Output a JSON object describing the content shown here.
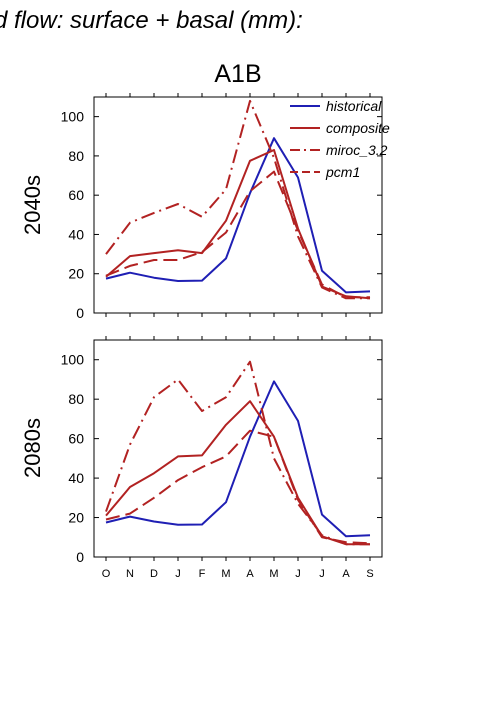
{
  "figure": {
    "title": "d flow: surface + basal (mm):",
    "scenario": "A1B"
  },
  "colors": {
    "historical": "#1f1fb4",
    "projections": "#b22222",
    "axis": "#000000"
  },
  "legend": {
    "placement": "top-right",
    "entries": [
      {
        "label": "historical",
        "style": "solid",
        "color": "#1f1fb4"
      },
      {
        "label": "composite",
        "style": "solid",
        "color": "#b22222"
      },
      {
        "label": "miroc_3.2",
        "style": "dashdot",
        "color": "#b22222"
      },
      {
        "label": "pcm1",
        "style": "dash",
        "color": "#b22222"
      }
    ]
  },
  "chart_data": [
    {
      "type": "line",
      "row_label": "2040s",
      "x": [
        "O",
        "N",
        "D",
        "J",
        "F",
        "M",
        "A",
        "M",
        "J",
        "J",
        "A",
        "S"
      ],
      "ylim": [
        0,
        110
      ],
      "yticks": [
        0,
        20,
        40,
        60,
        80,
        100
      ],
      "grid": false,
      "series": [
        {
          "name": "historical",
          "style": "solid",
          "color": "#1f1fb4",
          "values": [
            17.5,
            20.5,
            18,
            16.3,
            16.5,
            27.8,
            61,
            89,
            69,
            21.5,
            10.5,
            11
          ]
        },
        {
          "name": "composite",
          "style": "solid",
          "color": "#b22222",
          "values": [
            18.5,
            29,
            30.5,
            32,
            30.5,
            47,
            77.5,
            83,
            43,
            13.5,
            8.5,
            7.5
          ]
        },
        {
          "name": "miroc_3.2",
          "style": "dashdot",
          "color": "#b22222",
          "values": [
            30,
            46,
            51,
            55.5,
            49,
            63,
            108,
            79,
            39,
            13,
            7.5,
            7.5
          ]
        },
        {
          "name": "pcm1",
          "style": "dash",
          "color": "#b22222",
          "values": [
            19,
            24,
            27,
            27,
            31,
            41,
            62,
            72,
            42,
            14.5,
            8,
            8
          ]
        }
      ]
    },
    {
      "type": "line",
      "row_label": "2080s",
      "x": [
        "O",
        "N",
        "D",
        "J",
        "F",
        "M",
        "A",
        "M",
        "J",
        "J",
        "A",
        "S"
      ],
      "ylim": [
        0,
        110
      ],
      "yticks": [
        0,
        20,
        40,
        60,
        80,
        100
      ],
      "grid": false,
      "series": [
        {
          "name": "historical",
          "style": "solid",
          "color": "#1f1fb4",
          "values": [
            17.5,
            20.5,
            18,
            16.3,
            16.5,
            27.8,
            61,
            89,
            69,
            21.5,
            10.5,
            11
          ]
        },
        {
          "name": "composite",
          "style": "solid",
          "color": "#b22222",
          "values": [
            21,
            35.5,
            42.5,
            51,
            51.5,
            67,
            79,
            61,
            30,
            10.5,
            6.5,
            6.5
          ]
        },
        {
          "name": "miroc_3.2",
          "style": "dashdot",
          "color": "#b22222",
          "values": [
            23,
            57,
            81,
            90,
            74,
            81,
            99,
            50,
            27,
            11,
            6.5,
            6.5
          ]
        },
        {
          "name": "pcm1",
          "style": "dash",
          "color": "#b22222",
          "values": [
            19,
            22,
            30,
            39,
            45.5,
            51,
            64,
            61,
            29,
            10,
            7.5,
            7
          ]
        }
      ]
    }
  ]
}
